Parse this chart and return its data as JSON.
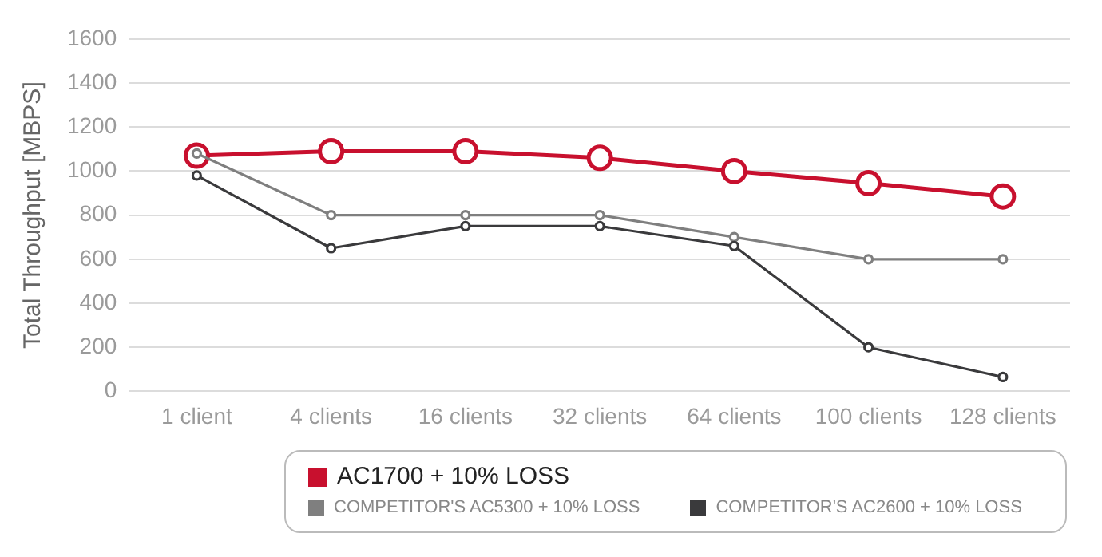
{
  "chart_data": {
    "type": "line",
    "ylabel": "Total Throughput [MBPS]",
    "categories": [
      "1 client",
      "4 clients",
      "16 clients",
      "32 clients",
      "64 clients",
      "100 clients",
      "128 clients"
    ],
    "series": [
      {
        "name": "AC1700 + 10% LOSS",
        "color": "#c8102e",
        "values": [
          1070,
          1090,
          1090,
          1060,
          1000,
          945,
          885
        ]
      },
      {
        "name": "COMPETITOR'S AC5300 + 10% LOSS",
        "color": "#7f7f7f",
        "values": [
          1080,
          800,
          800,
          800,
          700,
          600,
          600
        ]
      },
      {
        "name": "COMPETITOR'S AC2600 + 10% LOSS",
        "color": "#3a3a3c",
        "values": [
          980,
          650,
          750,
          750,
          660,
          200,
          65
        ]
      }
    ],
    "ylim": [
      0,
      1600
    ],
    "yticks": [
      0,
      200,
      400,
      600,
      800,
      1000,
      1200,
      1400,
      1600
    ],
    "grid": "y",
    "legend": "bottom",
    "marker": "circle",
    "line_style": "solid"
  }
}
